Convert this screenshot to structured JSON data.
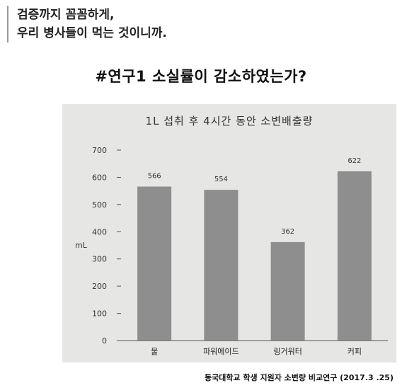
{
  "quote": {
    "lines": [
      "검증까지 꼼꼼하게,",
      "우리 병사들이 먹는 것이니까."
    ]
  },
  "headline": "#연구1 소실률이 감소하였는가?",
  "source": "동국대학교 학생 지원자 소변량 비교연구 (2017.3 .25)",
  "chart_data": {
    "type": "bar",
    "title": "1L 섭취 후 4시간 동안 소변배출량",
    "xlabel": "",
    "ylabel": "mL",
    "categories": [
      "물",
      "파워에이드",
      "링거워터",
      "커피"
    ],
    "values": [
      566,
      554,
      362,
      622
    ],
    "data_labels": [
      "566",
      "554",
      "362",
      "622"
    ],
    "ylim": [
      0,
      700
    ],
    "yticks": [
      0,
      100,
      200,
      300,
      400,
      500,
      600,
      700
    ],
    "grid": false,
    "legend": "none",
    "colors": {
      "bar": "#8e8e8e",
      "background": "#e6e6e4",
      "axis": "#555555",
      "text": "#333333"
    }
  }
}
